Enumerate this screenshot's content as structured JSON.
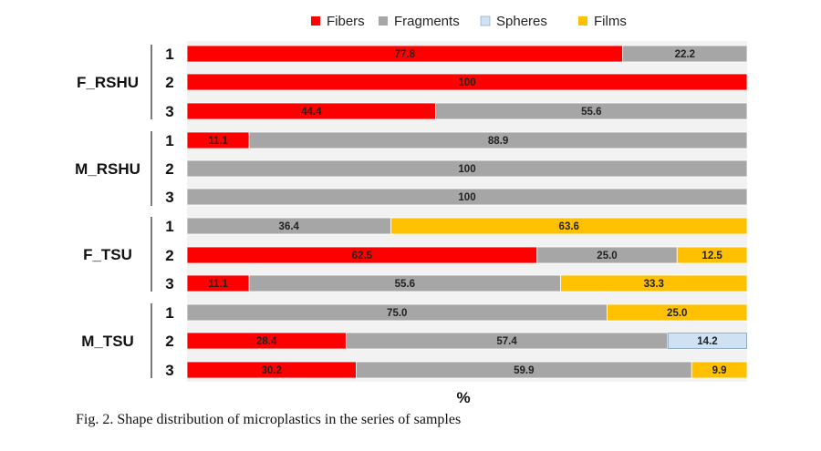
{
  "chart_data": {
    "type": "bar",
    "orientation": "horizontal",
    "stacked": true,
    "xlabel": "%",
    "xlim": [
      0,
      100
    ],
    "legend_position": "top",
    "series": [
      {
        "name": "Fibers",
        "color": "#ff0000"
      },
      {
        "name": "Fragments",
        "color": "#a6a6a6"
      },
      {
        "name": "Spheres",
        "color": "#cfe2f3"
      },
      {
        "name": "Films",
        "color": "#ffc000"
      }
    ],
    "groups": [
      {
        "name": "F_RSHU",
        "rows": [
          {
            "label": "1",
            "values": [
              77.8,
              22.2,
              0,
              0
            ],
            "labels": [
              "77.8",
              "22.2",
              "",
              ""
            ]
          },
          {
            "label": "2",
            "values": [
              100,
              0,
              0,
              0
            ],
            "labels": [
              "100",
              "",
              "",
              ""
            ]
          },
          {
            "label": "3",
            "values": [
              44.4,
              55.6,
              0,
              0
            ],
            "labels": [
              "44.4",
              "55.6",
              "",
              ""
            ]
          }
        ]
      },
      {
        "name": "M_RSHU",
        "rows": [
          {
            "label": "1",
            "values": [
              11.1,
              88.9,
              0,
              0
            ],
            "labels": [
              "11.1",
              "88.9",
              "",
              ""
            ]
          },
          {
            "label": "2",
            "values": [
              0,
              100,
              0,
              0
            ],
            "labels": [
              "",
              "100",
              "",
              ""
            ]
          },
          {
            "label": "3",
            "values": [
              0,
              100,
              0,
              0
            ],
            "labels": [
              "",
              "100",
              "",
              ""
            ]
          }
        ]
      },
      {
        "name": "F_TSU",
        "rows": [
          {
            "label": "1",
            "values": [
              0,
              36.4,
              0,
              63.6
            ],
            "labels": [
              "",
              "36.4",
              "",
              "63.6"
            ]
          },
          {
            "label": "2",
            "values": [
              62.5,
              25.0,
              0,
              12.5
            ],
            "labels": [
              "62.5",
              "25.0",
              "",
              "12.5"
            ]
          },
          {
            "label": "3",
            "values": [
              11.1,
              55.6,
              0,
              33.3
            ],
            "labels": [
              "11.1",
              "55.6",
              "",
              "33.3"
            ]
          }
        ]
      },
      {
        "name": "M_TSU",
        "rows": [
          {
            "label": "1",
            "values": [
              0,
              75.0,
              0,
              25.0
            ],
            "labels": [
              "",
              "75.0",
              "",
              "25.0"
            ]
          },
          {
            "label": "2",
            "values": [
              28.4,
              57.4,
              14.2,
              0
            ],
            "labels": [
              "28.4",
              "57.4",
              "14.2",
              ""
            ]
          },
          {
            "label": "3",
            "values": [
              30.2,
              59.9,
              0,
              9.9
            ],
            "labels": [
              "30.2",
              "59.9",
              "",
              "9.9"
            ]
          }
        ]
      }
    ]
  },
  "caption": "Fig. 2. Shape distribution of microplastics in the series of samples"
}
